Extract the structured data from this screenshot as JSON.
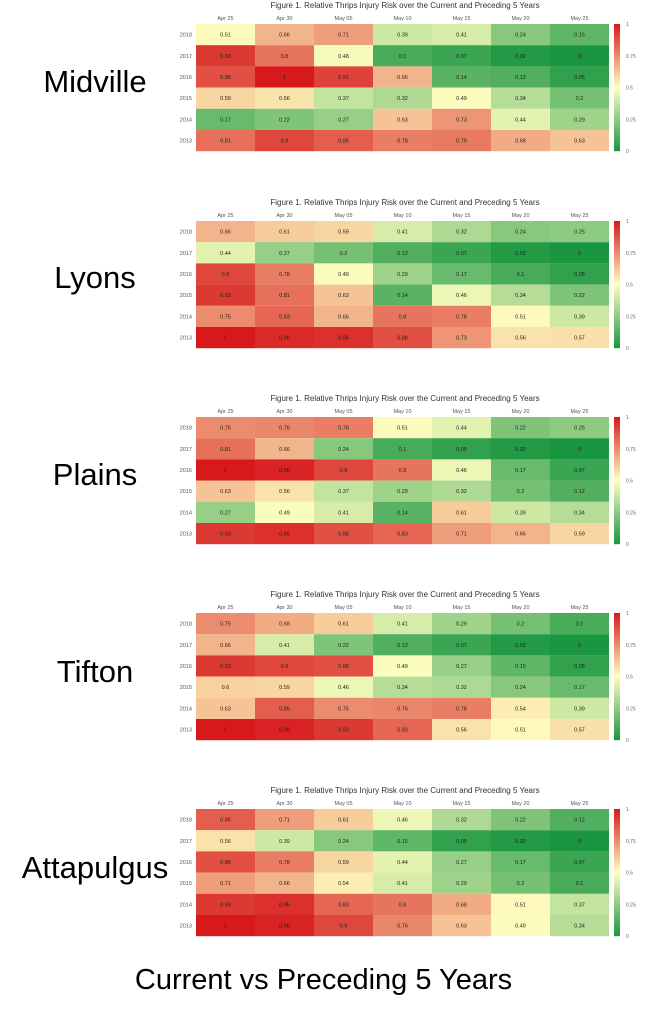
{
  "footer_text": "Current vs Preceding 5 Years",
  "colorbar_ticks": [
    "1",
    "0.75",
    "0.5",
    "0.25",
    "0"
  ],
  "colors": {
    "low": "#1a9641",
    "mid": "#ffffbf",
    "high": "#d7191c"
  },
  "chart_data": [
    {
      "type": "heatmap",
      "location": "Midville",
      "title": "Figure 1. Relative Thrips Injury Risk over the Current and Preceding 5 Years",
      "x": [
        "Apr 25",
        "Apr 30",
        "May 05",
        "May 10",
        "May 15",
        "May 20",
        "May 25"
      ],
      "y": [
        "2018",
        "2017",
        "2016",
        "2015",
        "2014",
        "2013"
      ],
      "values": [
        [
          0.51,
          0.66,
          0.71,
          0.39,
          0.41,
          0.24,
          0.15
        ],
        [
          0.93,
          0.8,
          0.48,
          0.1,
          0.07,
          0.02,
          0
        ],
        [
          0.88,
          1,
          0.91,
          0.66,
          0.14,
          0.12,
          0.05
        ],
        [
          0.59,
          0.56,
          0.37,
          0.32,
          0.49,
          0.34,
          0.2
        ],
        [
          0.17,
          0.22,
          0.27,
          0.63,
          0.73,
          0.44,
          0.29
        ],
        [
          0.81,
          0.9,
          0.85,
          0.78,
          0.79,
          0.68,
          0.63
        ]
      ],
      "zlim": [
        0,
        1
      ]
    },
    {
      "type": "heatmap",
      "location": "Lyons",
      "title": "Figure 1. Relative Thrips Injury Risk over the Current and Preceding 5 Years",
      "x": [
        "Apr 25",
        "Apr 30",
        "May 05",
        "May 10",
        "May 15",
        "May 20",
        "May 25"
      ],
      "y": [
        "2018",
        "2017",
        "2016",
        "2015",
        "2014",
        "2013"
      ],
      "values": [
        [
          0.66,
          0.61,
          0.59,
          0.41,
          0.32,
          0.24,
          0.25
        ],
        [
          0.44,
          0.27,
          0.2,
          0.12,
          0.07,
          0.02,
          0
        ],
        [
          0.9,
          0.78,
          0.49,
          0.29,
          0.17,
          0.1,
          0.05
        ],
        [
          0.93,
          0.81,
          0.63,
          0.14,
          0.46,
          0.34,
          0.22
        ],
        [
          0.75,
          0.83,
          0.66,
          0.8,
          0.78,
          0.51,
          0.39
        ],
        [
          1,
          0.96,
          0.95,
          0.88,
          0.73,
          0.56,
          0.57
        ]
      ],
      "zlim": [
        0,
        1
      ]
    },
    {
      "type": "heatmap",
      "location": "Plains",
      "title": "Figure 1. Relative Thrips Injury Risk over the Current and Preceding 5 Years",
      "x": [
        "Apr 25",
        "Apr 30",
        "May 05",
        "May 10",
        "May 15",
        "May 20",
        "May 25"
      ],
      "y": [
        "2018",
        "2017",
        "2016",
        "2015",
        "2014",
        "2013"
      ],
      "values": [
        [
          0.75,
          0.76,
          0.78,
          0.51,
          0.44,
          0.22,
          0.25
        ],
        [
          0.81,
          0.66,
          0.24,
          0.1,
          0.05,
          0.02,
          0
        ],
        [
          1,
          0.98,
          0.9,
          0.8,
          0.46,
          0.17,
          0.07
        ],
        [
          0.63,
          0.56,
          0.37,
          0.29,
          0.32,
          0.2,
          0.12
        ],
        [
          0.27,
          0.49,
          0.41,
          0.14,
          0.61,
          0.39,
          0.34
        ],
        [
          0.93,
          0.95,
          0.88,
          0.83,
          0.71,
          0.66,
          0.59
        ]
      ],
      "zlim": [
        0,
        1
      ]
    },
    {
      "type": "heatmap",
      "location": "Tifton",
      "title": "Figure 1. Relative Thrips Injury Risk over the Current and Preceding 5 Years",
      "x": [
        "Apr 25",
        "Apr 30",
        "May 05",
        "May 10",
        "May 15",
        "May 20",
        "May 25"
      ],
      "y": [
        "2018",
        "2017",
        "2016",
        "2015",
        "2014",
        "2013"
      ],
      "values": [
        [
          0.75,
          0.68,
          0.61,
          0.41,
          0.29,
          0.2,
          0.1
        ],
        [
          0.66,
          0.41,
          0.22,
          0.12,
          0.07,
          0.02,
          0
        ],
        [
          0.93,
          0.9,
          0.88,
          0.49,
          0.27,
          0.15,
          0.05
        ],
        [
          0.6,
          0.59,
          0.46,
          0.34,
          0.32,
          0.24,
          0.17
        ],
        [
          0.63,
          0.85,
          0.75,
          0.76,
          0.78,
          0.54,
          0.39
        ],
        [
          1,
          0.98,
          0.93,
          0.83,
          0.56,
          0.51,
          0.57
        ]
      ],
      "zlim": [
        0,
        1
      ]
    },
    {
      "type": "heatmap",
      "location": "Attapulgus",
      "title": "Figure 1. Relative Thrips Injury Risk over the Current and Preceding 5 Years",
      "x": [
        "Apr 25",
        "Apr 30",
        "May 05",
        "May 10",
        "May 15",
        "May 20",
        "May 25"
      ],
      "y": [
        "2018",
        "2017",
        "2016",
        "2015",
        "2014",
        "2013"
      ],
      "values": [
        [
          0.85,
          0.71,
          0.61,
          0.46,
          0.32,
          0.22,
          0.12
        ],
        [
          0.56,
          0.39,
          0.24,
          0.15,
          0.05,
          0.02,
          0
        ],
        [
          0.88,
          0.78,
          0.59,
          0.44,
          0.27,
          0.17,
          0.07
        ],
        [
          0.71,
          0.66,
          0.54,
          0.41,
          0.29,
          0.2,
          0.1
        ],
        [
          0.93,
          0.95,
          0.83,
          0.8,
          0.68,
          0.51,
          0.37
        ],
        [
          1,
          0.98,
          0.9,
          0.76,
          0.63,
          0.49,
          0.34
        ]
      ],
      "zlim": [
        0,
        1
      ]
    }
  ]
}
